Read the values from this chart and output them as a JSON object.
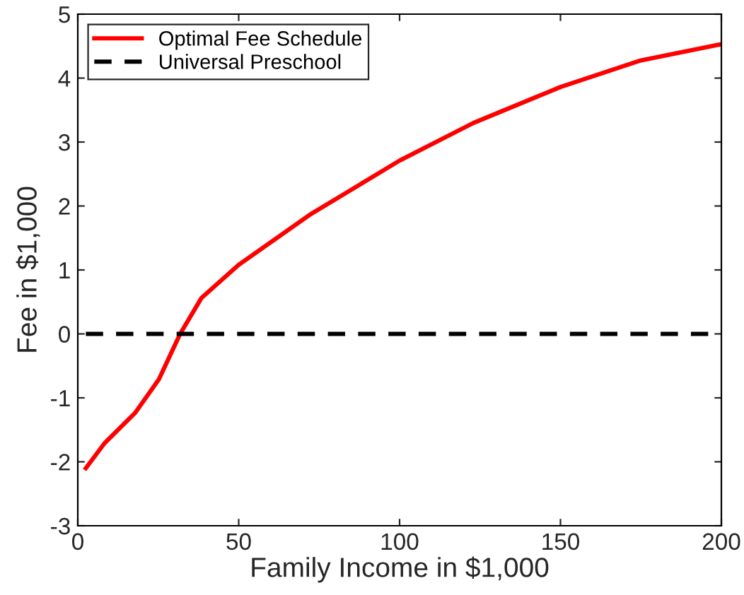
{
  "chart_data": {
    "type": "line",
    "xlabel": "Family Income in $1,000",
    "ylabel": "Fee in $1,000",
    "series": [
      {
        "name": "Optimal Fee Schedule",
        "color": "#ff0000",
        "line_style": "solid",
        "x": [
          2.5,
          8.3,
          17.9,
          25.2,
          31.8,
          38.4,
          50,
          72,
          100,
          123,
          150,
          174.5,
          200
        ],
        "values": [
          -2.1,
          -1.71,
          -1.23,
          -0.71,
          0,
          0.56,
          1.08,
          1.86,
          2.71,
          3.3,
          3.86,
          4.27,
          4.53
        ]
      },
      {
        "name": "Universal Preschool",
        "color": "#000000",
        "line_style": "dashed",
        "x": [
          2.5,
          200
        ],
        "values": [
          0,
          0
        ]
      }
    ],
    "xlim": [
      0,
      200
    ],
    "ylim": [
      -3,
      5
    ],
    "xticks": [
      0,
      50,
      100,
      150,
      200
    ],
    "yticks": [
      -3,
      -2,
      -1,
      0,
      1,
      2,
      3,
      4,
      5
    ],
    "grid": false,
    "legend": "top left",
    "marker": "none"
  }
}
